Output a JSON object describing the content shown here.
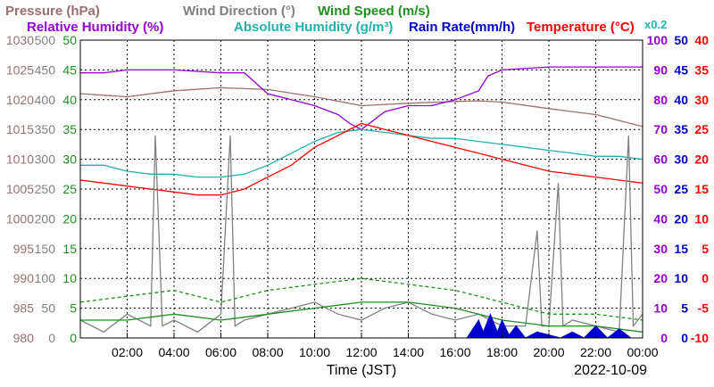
{
  "legend": {
    "row1": [
      {
        "text": "Pressure (hPa)",
        "color": "#9b6f6f"
      },
      {
        "text": "Wind Direction (°)",
        "color": "#808080"
      },
      {
        "text": "Wind Speed (m/s)",
        "color": "#1f8f1f"
      }
    ],
    "row2": [
      {
        "text": "Relative Humidity (%)",
        "color": "#9400d3"
      },
      {
        "text": "Absolute Humidity (g/m³)",
        "color": "#20b2aa"
      },
      {
        "text": "Rain Rate(mm/h)",
        "color": "#0000cd"
      },
      {
        "text": "Temperature (°C)",
        "color": "#ff0000"
      }
    ],
    "abs_hum_scale": "x0.2"
  },
  "chart_data": {
    "type": "line",
    "xlabel": "Time (JST)",
    "date": "2022-10-09",
    "x_ticks": [
      "02:00",
      "04:00",
      "06:00",
      "08:00",
      "10:00",
      "12:00",
      "14:00",
      "16:00",
      "18:00",
      "20:00",
      "22:00",
      "00:00"
    ],
    "x_range_hours": [
      0,
      24
    ],
    "left_axes": [
      {
        "name": "Pressure (hPa)",
        "color": "#9b6f6f",
        "ticks": [
          "1030",
          "1025",
          "1020",
          "1015",
          "1010",
          "1005",
          "1000",
          "995",
          "990",
          "985",
          "980"
        ]
      },
      {
        "name": "Wind Direction (°)",
        "color": "#808080",
        "ticks": [
          "500",
          "450",
          "400",
          "350",
          "300",
          "250",
          "200",
          "150",
          "100",
          "50",
          "0"
        ]
      },
      {
        "name": "Wind Speed (m/s)",
        "color": "#1f8f1f",
        "ticks": [
          "50",
          "45",
          "40",
          "35",
          "30",
          "25",
          "20",
          "15",
          "10",
          "5",
          "0"
        ]
      }
    ],
    "right_axes": [
      {
        "name": "Relative Humidity (%)",
        "color": "#9400d3",
        "ticks": [
          "100",
          "90",
          "80",
          "70",
          "60",
          "50",
          "40",
          "30",
          "20",
          "10",
          "0"
        ]
      },
      {
        "name": "Rain Rate(mm/h)",
        "color": "#0000cd",
        "ticks": [
          "50",
          "45",
          "40",
          "35",
          "30",
          "25",
          "20",
          "15",
          "10",
          "5",
          "0"
        ]
      },
      {
        "name": "Temperature (°C)",
        "color": "#ff0000",
        "ticks": [
          "40",
          "35",
          "30",
          "25",
          "20",
          "15",
          "10",
          "5",
          "0",
          "-5",
          "-10"
        ]
      }
    ],
    "series": [
      {
        "name": "Pressure (hPa)",
        "color": "#9b6f6f",
        "ymin": 980,
        "ymax": 1030,
        "x": [
          0,
          2,
          4,
          6,
          8,
          10,
          12,
          14,
          16,
          17,
          18,
          20,
          22,
          24
        ],
        "y": [
          1021,
          1020.5,
          1021.5,
          1022,
          1021.7,
          1020.5,
          1019,
          1019.4,
          1019.7,
          1019.8,
          1019.6,
          1018.5,
          1017.5,
          1015.5
        ]
      },
      {
        "name": "Relative Humidity (%)",
        "color": "#9400d3",
        "ymin": 0,
        "ymax": 100,
        "x": [
          0,
          1,
          2,
          4,
          6,
          7,
          8,
          9,
          10,
          11,
          11.5,
          12,
          13,
          14,
          15,
          16,
          17,
          17.4,
          18,
          20,
          22,
          24
        ],
        "y": [
          89,
          89,
          90,
          90,
          89,
          89,
          82,
          80,
          78,
          75,
          72,
          70,
          76,
          78,
          78,
          80,
          83,
          88,
          90,
          91,
          91,
          91
        ]
      },
      {
        "name": "Absolute Humidity (g/m³)",
        "color": "#20b2aa",
        "ymin": 0,
        "ymax": 100,
        "x": [
          0,
          1,
          2,
          3,
          4,
          5,
          6,
          7,
          8,
          9,
          10,
          11,
          12,
          13,
          14,
          15,
          16,
          17,
          18,
          19,
          20,
          21,
          22,
          23,
          24
        ],
        "y": [
          58,
          58,
          56,
          55,
          55,
          54,
          54,
          55,
          58,
          62,
          66,
          69,
          70,
          69,
          68,
          67,
          67,
          66,
          65,
          64,
          63,
          62,
          61,
          61,
          60
        ]
      },
      {
        "name": "Temperature (°C)",
        "color": "#ff0000",
        "ymin": -10,
        "ymax": 40,
        "x": [
          0,
          1,
          2,
          3,
          4,
          5,
          6,
          7,
          8,
          9,
          10,
          11,
          12,
          13,
          14,
          15,
          16,
          17,
          18,
          19,
          20,
          21,
          22,
          23,
          24
        ],
        "y": [
          16.5,
          16,
          15.5,
          15,
          14.5,
          14,
          14,
          15,
          17,
          19,
          22,
          24,
          26,
          25,
          24,
          23,
          22,
          21,
          20,
          19,
          18,
          17.5,
          17,
          16.5,
          16
        ]
      },
      {
        "name": "Wind Direction (°)",
        "color": "#808080",
        "ymin": 0,
        "ymax": 500,
        "x": [
          0,
          1,
          2,
          3,
          3.2,
          3.5,
          4,
          5,
          6,
          6.4,
          6.6,
          7,
          8,
          9,
          10,
          11,
          12,
          13,
          14,
          15,
          16,
          17,
          18,
          19,
          19.5,
          19.7,
          20,
          20.4,
          20.6,
          21,
          22,
          23,
          23.4,
          23.6,
          24
        ],
        "y": [
          30,
          10,
          40,
          20,
          340,
          20,
          30,
          10,
          40,
          340,
          20,
          30,
          40,
          50,
          60,
          40,
          30,
          50,
          60,
          40,
          30,
          40,
          20,
          20,
          180,
          20,
          20,
          260,
          20,
          30,
          20,
          10,
          340,
          20,
          40
        ]
      },
      {
        "name": "Wind Speed (m/s)",
        "color": "#1f8f1f",
        "ymin": 0,
        "ymax": 50,
        "x": [
          0,
          2,
          4,
          6,
          8,
          10,
          12,
          14,
          16,
          18,
          20,
          22,
          24
        ],
        "y": [
          3,
          3,
          4,
          3,
          4,
          5,
          6,
          6,
          5,
          3,
          2,
          2,
          1
        ]
      },
      {
        "name": "Wind Speed Gust (m/s)",
        "color": "#1f8f1f",
        "dashed": true,
        "ymin": 0,
        "ymax": 50,
        "x": [
          0,
          2,
          4,
          6,
          8,
          10,
          12,
          14,
          16,
          18,
          20,
          22,
          24
        ],
        "y": [
          6,
          7,
          8,
          6,
          8,
          9,
          10,
          9,
          8,
          6,
          4,
          4,
          3
        ]
      },
      {
        "name": "Rain Rate(mm/h)",
        "color": "#0000cd",
        "fill": true,
        "ymin": 0,
        "ymax": 50,
        "x": [
          16.5,
          17,
          17.2,
          17.5,
          17.8,
          18,
          18.3,
          18.6,
          19,
          19.5,
          20.5,
          21,
          21.5,
          22,
          22.5,
          23,
          23.5,
          24
        ],
        "y": [
          0,
          3,
          1,
          4,
          1,
          3,
          0.5,
          2,
          0,
          1,
          0,
          1,
          0,
          2,
          0,
          1.5,
          0,
          0
        ]
      }
    ]
  }
}
